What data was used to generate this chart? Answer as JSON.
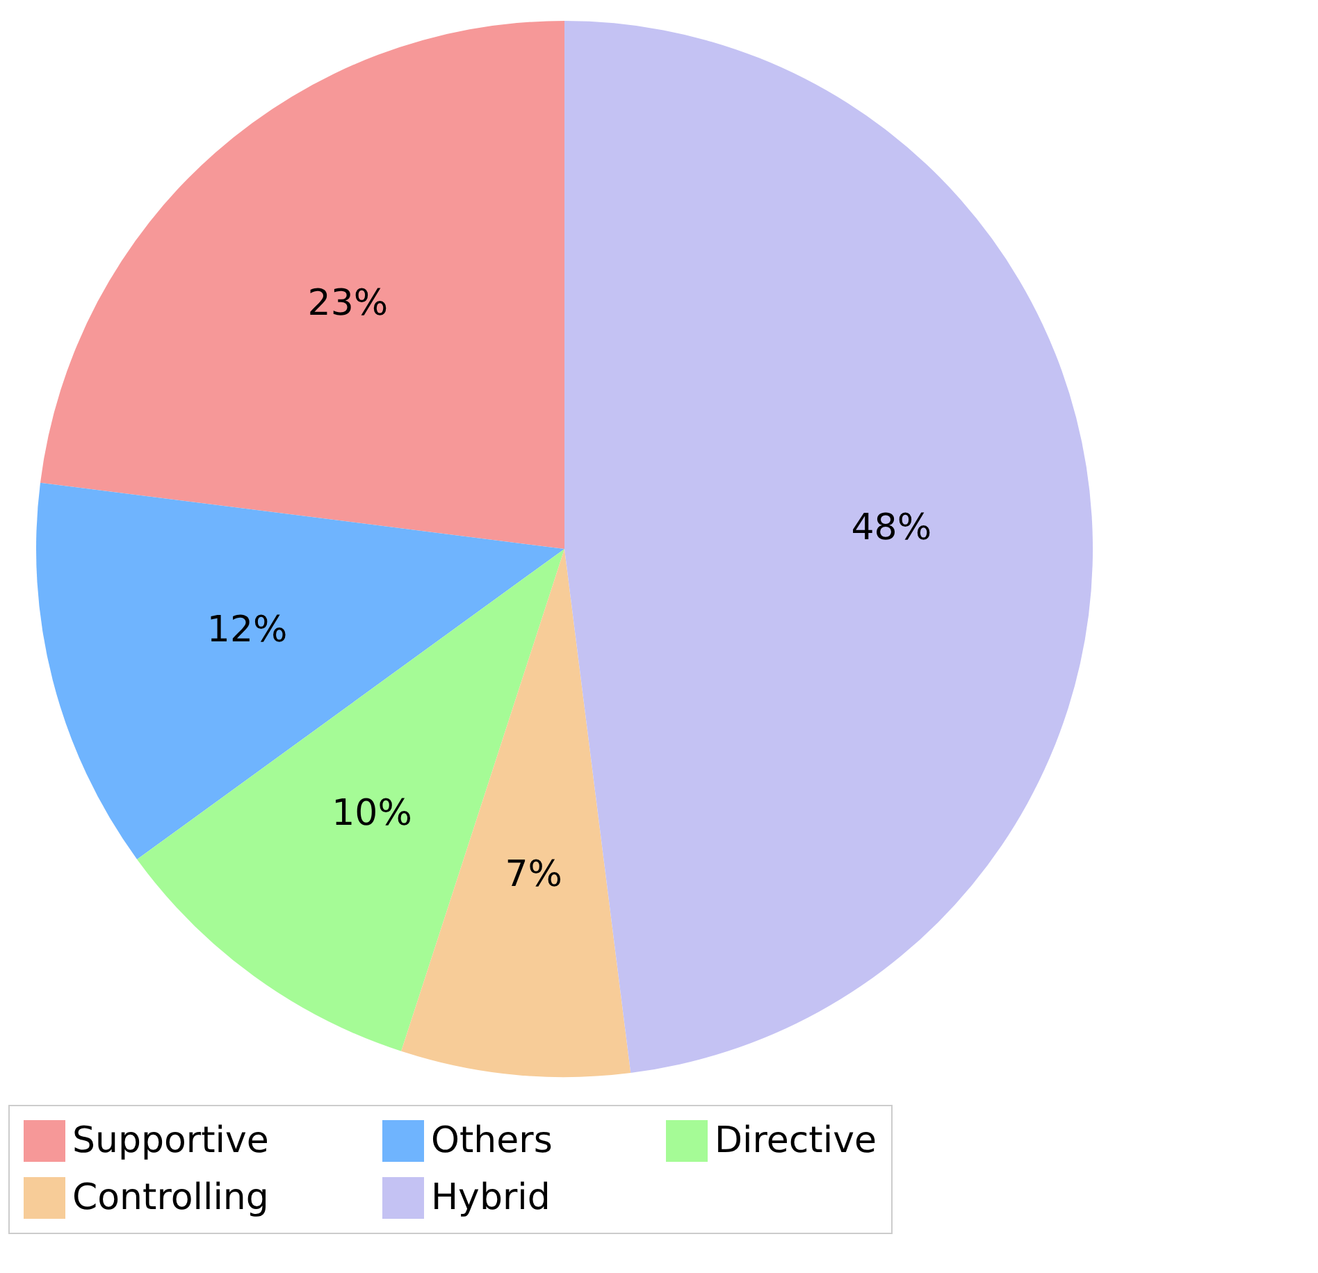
{
  "chart_data": {
    "type": "pie",
    "categories": [
      "Supportive",
      "Others",
      "Directive",
      "Controlling",
      "Hybrid"
    ],
    "values": [
      23,
      12,
      10,
      7,
      48
    ],
    "colors": [
      "#f69898",
      "#6fb4fe",
      "#a5fb96",
      "#f7cc98",
      "#c4c2f3"
    ],
    "value_labels": [
      "23%",
      "12%",
      "10%",
      "7%",
      "48%"
    ],
    "legend": "bottom"
  }
}
